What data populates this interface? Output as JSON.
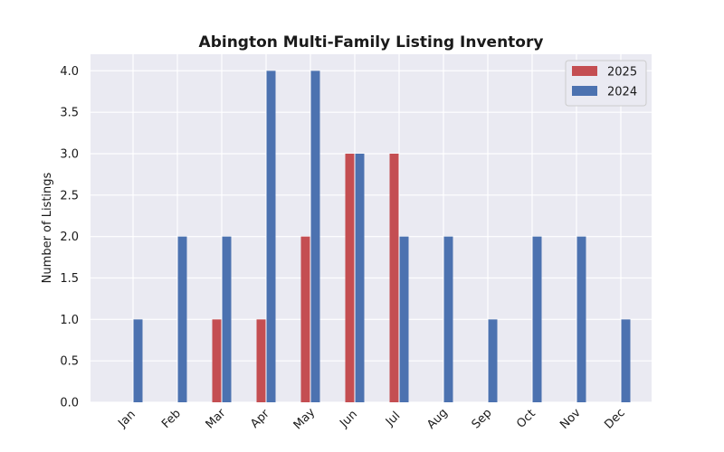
{
  "chart_data": {
    "type": "bar",
    "title": "Abington Multi-Family Listing Inventory",
    "xlabel": "",
    "ylabel": "Number of Listings",
    "categories": [
      "Jan",
      "Feb",
      "Mar",
      "Apr",
      "May",
      "Jun",
      "Jul",
      "Aug",
      "Sep",
      "Oct",
      "Nov",
      "Dec"
    ],
    "series": [
      {
        "name": "2025",
        "color": "#c44e52",
        "values": [
          0,
          0,
          1,
          1,
          2,
          3,
          3,
          0,
          0,
          0,
          0,
          0
        ]
      },
      {
        "name": "2024",
        "color": "#4c72b0",
        "values": [
          1,
          2,
          2,
          4,
          4,
          3,
          2,
          2,
          1,
          2,
          2,
          1
        ]
      }
    ],
    "ylim": [
      0,
      4.2
    ],
    "yticks": [
      "0.0",
      "0.5",
      "1.0",
      "1.5",
      "2.0",
      "2.5",
      "3.0",
      "3.5",
      "4.0"
    ],
    "grid": true,
    "legend_position": "top-right",
    "background": "#eaeaf2"
  }
}
